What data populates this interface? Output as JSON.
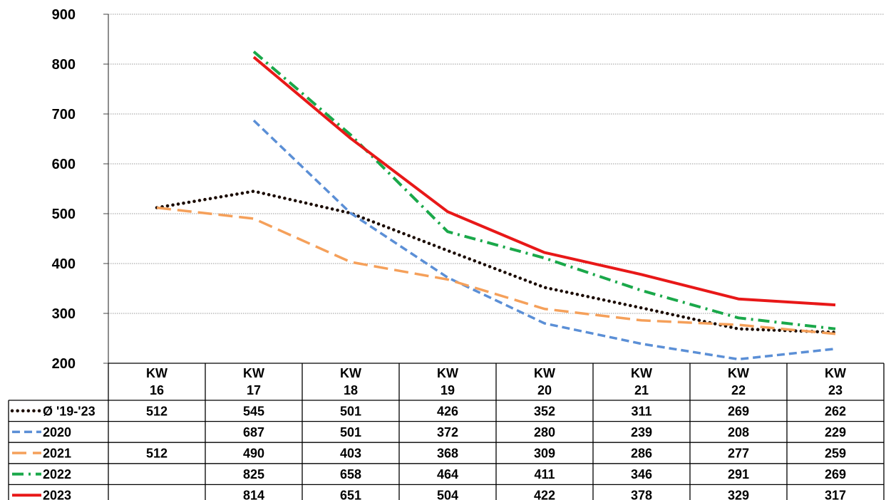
{
  "chart_data": {
    "type": "line",
    "categories": [
      [
        "KW",
        "16"
      ],
      [
        "KW",
        "17"
      ],
      [
        "KW",
        "18"
      ],
      [
        "KW",
        "19"
      ],
      [
        "KW",
        "20"
      ],
      [
        "KW",
        "21"
      ],
      [
        "KW",
        "22"
      ],
      [
        "KW",
        "23"
      ]
    ],
    "ylim": [
      200,
      900
    ],
    "yticks": [
      200,
      300,
      400,
      500,
      600,
      700,
      800,
      900
    ],
    "grid": true,
    "legend": "data-table-left",
    "series": [
      {
        "name": "Ø '19-'23",
        "color": "#1a0a00",
        "style": "dotted",
        "values": [
          512,
          545,
          501,
          426,
          352,
          311,
          269,
          262
        ],
        "labels": [
          "512",
          "545",
          "501",
          "426",
          "352",
          "311",
          "269",
          "262"
        ]
      },
      {
        "name": "2020",
        "color": "#5b8fd6",
        "style": "dashed",
        "values": [
          null,
          687,
          501,
          372,
          280,
          239,
          208,
          229
        ],
        "labels": [
          "",
          "687",
          "501",
          "372",
          "280",
          "239",
          "208",
          "229"
        ]
      },
      {
        "name": "2021",
        "color": "#f5a05a",
        "style": "longdash",
        "values": [
          512,
          490,
          403,
          368,
          309,
          286,
          277,
          259
        ],
        "labels": [
          "512",
          "490",
          "403",
          "368",
          "309",
          "286",
          "277",
          "259"
        ]
      },
      {
        "name": "2022",
        "color": "#1aa84a",
        "style": "dashdot",
        "values": [
          null,
          825,
          658,
          464,
          411,
          346,
          291,
          269
        ],
        "labels": [
          "",
          "825",
          "658",
          "464",
          "411",
          "346",
          "291",
          "269"
        ]
      },
      {
        "name": "2023",
        "color": "#e81818",
        "style": "solid",
        "values": [
          null,
          814,
          651,
          504,
          422,
          378,
          329,
          317
        ],
        "labels": [
          "",
          "814",
          "651",
          "504",
          "422",
          "378",
          "329",
          "317"
        ]
      }
    ]
  }
}
